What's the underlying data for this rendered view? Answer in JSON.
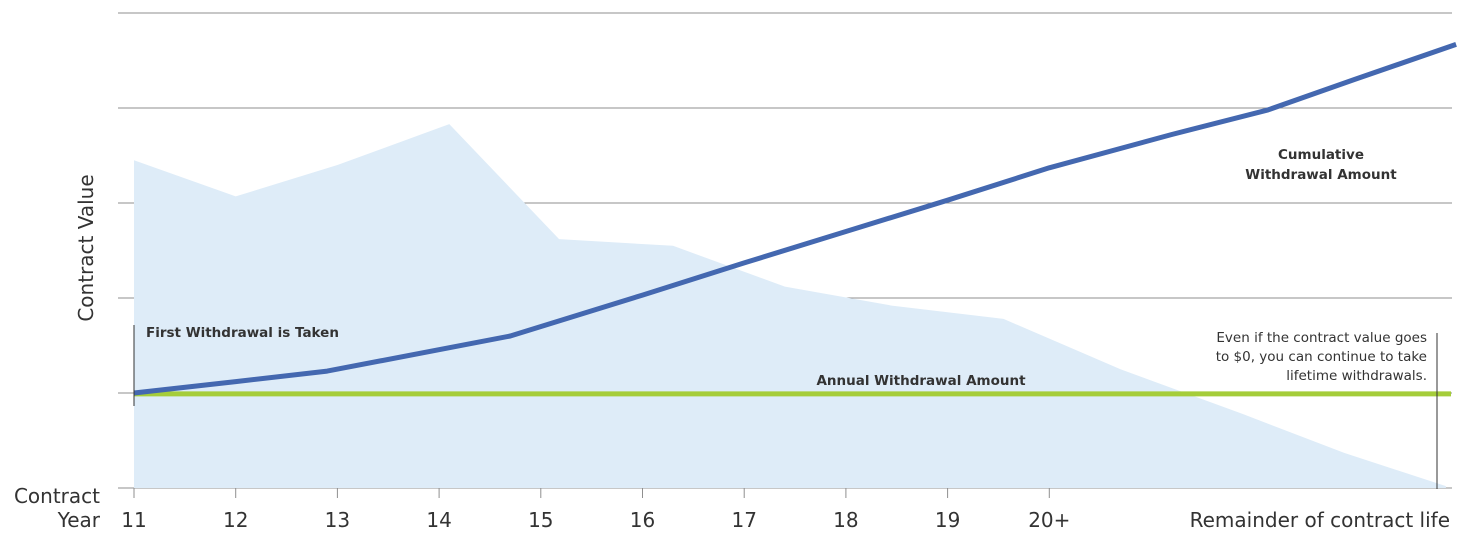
{
  "colors": {
    "area_fill": "#deecf8",
    "cumulative_line": "#4468b0",
    "annual_line": "#a5cd3a",
    "gridline": "#8f8f8f",
    "text": "#333333"
  },
  "chart_data": {
    "type": "line",
    "grid": true,
    "legend": "none",
    "ylabel": "Contract Value",
    "xlabel_lines": [
      "Contract",
      "Year"
    ],
    "categories": [
      "11",
      "12",
      "13",
      "14",
      "15",
      "16",
      "17",
      "18",
      "19",
      "20+",
      "Remainder of contract life"
    ],
    "ylim": [
      0,
      5
    ],
    "series": [
      {
        "kind": "area",
        "points": [
          {
            "x": 11.0,
            "y": 3.45
          },
          {
            "x": 12.0,
            "y": 3.07
          },
          {
            "x": 13.0,
            "y": 3.4
          },
          {
            "x": 14.1,
            "y": 3.83
          },
          {
            "x": 15.18,
            "y": 2.62
          },
          {
            "x": 16.3,
            "y": 2.55
          },
          {
            "x": 17.4,
            "y": 2.12
          },
          {
            "x": 18.45,
            "y": 1.92
          },
          {
            "x": 19.55,
            "y": 1.78
          },
          {
            "x": 20.7,
            "y": 1.25
          },
          {
            "x": 21.9,
            "y": 0.78
          },
          {
            "x": 22.9,
            "y": 0.37
          },
          {
            "x": 23.9,
            "y": 0.02
          }
        ]
      },
      {
        "name": "Cumulative Withdrawal Amount",
        "kind": "line",
        "points": [
          {
            "x": 11.0,
            "y": 1.0
          },
          {
            "x": 12.0,
            "y": 1.12
          },
          {
            "x": 12.9,
            "y": 1.23
          },
          {
            "x": 14.7,
            "y": 1.6
          },
          {
            "x": 16.0,
            "y": 2.03
          },
          {
            "x": 17.0,
            "y": 2.37
          },
          {
            "x": 18.0,
            "y": 2.7
          },
          {
            "x": 19.0,
            "y": 3.03
          },
          {
            "x": 20.0,
            "y": 3.37
          },
          {
            "x": 21.2,
            "y": 3.72
          },
          {
            "x": 22.15,
            "y": 3.98
          },
          {
            "x": 23.0,
            "y": 4.3
          },
          {
            "x": 24.0,
            "y": 4.67
          }
        ]
      },
      {
        "name": "Annual Withdrawal Amount",
        "kind": "line",
        "points": [
          {
            "x": 11.0,
            "y": 0.99
          },
          {
            "x": 23.95,
            "y": 0.99
          }
        ]
      }
    ],
    "annotations": {
      "first_withdrawal": "First Withdrawal is Taken",
      "cumulative_line1": "Cumulative",
      "cumulative_line2": "Withdrawal Amount",
      "annual": "Annual Withdrawal Amount",
      "note_lines": [
        "Even if the contract value goes",
        "to $0, you can continue to take",
        "lifetime withdrawals."
      ]
    }
  }
}
